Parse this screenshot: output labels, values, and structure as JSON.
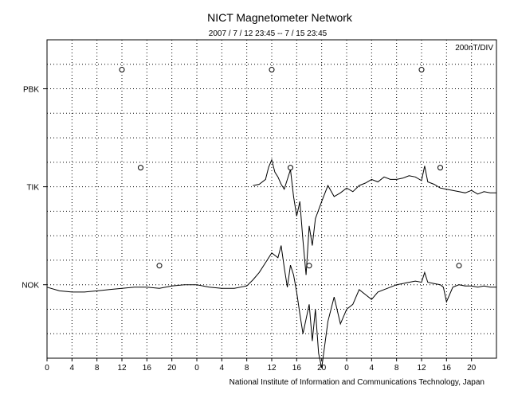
{
  "chart_data": {
    "type": "line",
    "title": "NICT Magnetometer Network",
    "subtitle": "2007 / 7 / 12   23:45 --  7 / 15   23:45",
    "scale_label": "200nT/DIV",
    "footer": "National Institute of Information and Communications Technology, Japan",
    "x_ticks": [
      "0",
      "4",
      "8",
      "12",
      "16",
      "20",
      "0",
      "4",
      "8",
      "12",
      "16",
      "20",
      "0",
      "4",
      "8",
      "12",
      "16",
      "20"
    ],
    "x_tick_hours": [
      0,
      4,
      8,
      12,
      16,
      20,
      24,
      28,
      32,
      36,
      40,
      44,
      48,
      52,
      56,
      60,
      64,
      68
    ],
    "xlim": [
      0,
      72
    ],
    "y_rows": 13,
    "grid": true,
    "colors": {
      "background": "#ffffff",
      "line": "#000000",
      "grid": "#000000"
    },
    "series": [
      {
        "name": "PBK",
        "row": 2,
        "markers_hours": [
          12,
          36,
          60
        ],
        "values": []
      },
      {
        "name": "TIK",
        "row": 6,
        "markers_hours": [
          15,
          39,
          63
        ],
        "hours": [
          33,
          34,
          35,
          35.5,
          36,
          36.5,
          37,
          37.5,
          38,
          38.5,
          39,
          39.5,
          40,
          40.5,
          41,
          41.5,
          42,
          42.5,
          43,
          44,
          45,
          46,
          47,
          48,
          49,
          50,
          51,
          52,
          53,
          54,
          55,
          56,
          57,
          58,
          59,
          60,
          60.5,
          61,
          62,
          63,
          64,
          65,
          66,
          67,
          68,
          69,
          70,
          71,
          72
        ],
        "values": [
          0.05,
          0.1,
          0.3,
          0.8,
          1.1,
          0.6,
          0.4,
          0.1,
          -0.1,
          0.3,
          0.7,
          -0.4,
          -1.2,
          -0.6,
          -2.2,
          -3.6,
          -1.6,
          -2.4,
          -1.3,
          -0.6,
          0.05,
          -0.4,
          -0.25,
          -0.05,
          -0.2,
          0.05,
          0.15,
          0.3,
          0.2,
          0.4,
          0.3,
          0.3,
          0.35,
          0.45,
          0.4,
          0.25,
          0.85,
          0.2,
          0.1,
          -0.05,
          -0.1,
          -0.15,
          -0.2,
          -0.25,
          -0.15,
          -0.3,
          -0.2,
          -0.25,
          -0.25
        ]
      },
      {
        "name": "NOK",
        "row": 10,
        "markers_hours": [
          18,
          42,
          66
        ],
        "hours": [
          0,
          2,
          4,
          6,
          8,
          10,
          12,
          14,
          16,
          18,
          20,
          22,
          24,
          26,
          28,
          30,
          32,
          33,
          34,
          35,
          36,
          37,
          37.5,
          38,
          38.5,
          39,
          39.5,
          40,
          40.5,
          41,
          41.5,
          42,
          42.5,
          43,
          43.5,
          44,
          45,
          46,
          47,
          48,
          49,
          50,
          51,
          52,
          53,
          54,
          55,
          56,
          57,
          58,
          59,
          60,
          60.5,
          61,
          62,
          63,
          63.5,
          64,
          65,
          66,
          67,
          68,
          69,
          70,
          71,
          72
        ],
        "values": [
          -0.1,
          -0.25,
          -0.3,
          -0.3,
          -0.25,
          -0.2,
          -0.15,
          -0.1,
          -0.1,
          -0.15,
          -0.05,
          0.0,
          0.0,
          -0.1,
          -0.15,
          -0.15,
          -0.05,
          0.2,
          0.5,
          0.9,
          1.3,
          1.1,
          1.6,
          0.7,
          -0.1,
          0.8,
          0.4,
          -0.3,
          -1.2,
          -2.0,
          -1.4,
          -0.8,
          -2.3,
          -1.0,
          -2.8,
          -3.4,
          -1.5,
          -0.5,
          -1.6,
          -1.0,
          -0.8,
          -0.2,
          -0.4,
          -0.6,
          -0.3,
          -0.2,
          -0.1,
          0.0,
          0.05,
          0.1,
          0.15,
          0.1,
          0.5,
          0.1,
          0.05,
          0.0,
          -0.1,
          -0.7,
          -0.1,
          0.0,
          -0.05,
          -0.05,
          -0.1,
          -0.05,
          -0.1,
          -0.1
        ]
      }
    ]
  }
}
